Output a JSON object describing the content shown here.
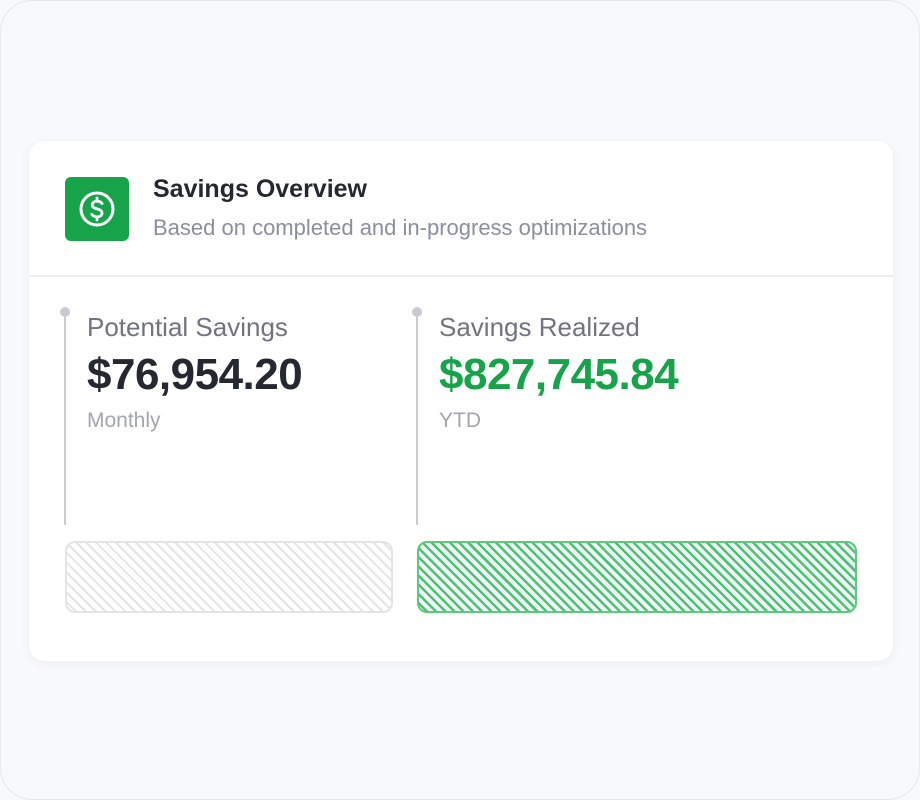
{
  "header": {
    "icon": "dollar-circle-icon",
    "title": "Savings Overview",
    "subtitle": "Based on completed and in-progress optimizations"
  },
  "metrics": [
    {
      "label": "Potential Savings",
      "value": "$76,954.20",
      "period": "Monthly",
      "color": "#252830"
    },
    {
      "label": "Savings Realized",
      "value": "$827,745.84",
      "period": "YTD",
      "color": "#16a34a"
    }
  ],
  "colors": {
    "accent": "#16a34a"
  }
}
